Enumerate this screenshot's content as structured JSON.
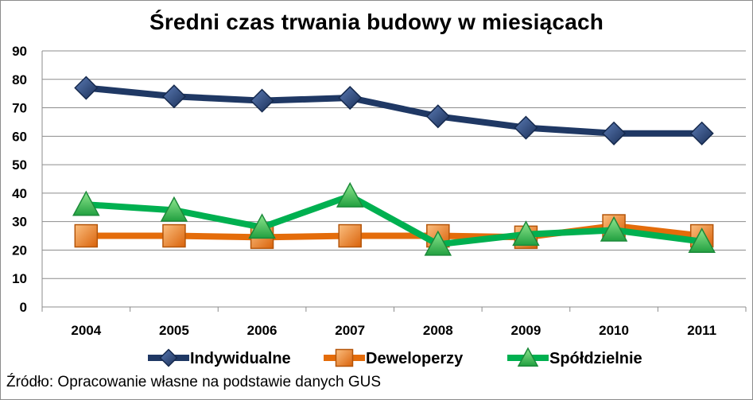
{
  "chart_data": {
    "type": "line",
    "title": "Średni czas trwania budowy w miesiącach",
    "source": "Źródło: Opracowanie własne na podstawie danych GUS",
    "categories": [
      "2004",
      "2005",
      "2006",
      "2007",
      "2008",
      "2009",
      "2010",
      "2011"
    ],
    "ylim": [
      0,
      90
    ],
    "yticks": [
      0,
      10,
      20,
      30,
      40,
      50,
      60,
      70,
      80,
      90
    ],
    "grid": true,
    "legend_position": "bottom",
    "series": [
      {
        "name": "Indywidualne",
        "marker": "diamond",
        "color": "#1f3864",
        "values": [
          77,
          74,
          72.5,
          73.5,
          67,
          63,
          61,
          61
        ]
      },
      {
        "name": "Deweloperzy",
        "marker": "square",
        "color": "#e46c0a",
        "values": [
          25,
          25,
          24.5,
          25,
          25,
          24.5,
          28.5,
          25
        ]
      },
      {
        "name": "Spółdzielnie",
        "marker": "triangle",
        "color": "#00b050",
        "values": [
          36,
          34,
          28,
          39,
          22,
          25.5,
          27,
          23
        ]
      }
    ]
  }
}
